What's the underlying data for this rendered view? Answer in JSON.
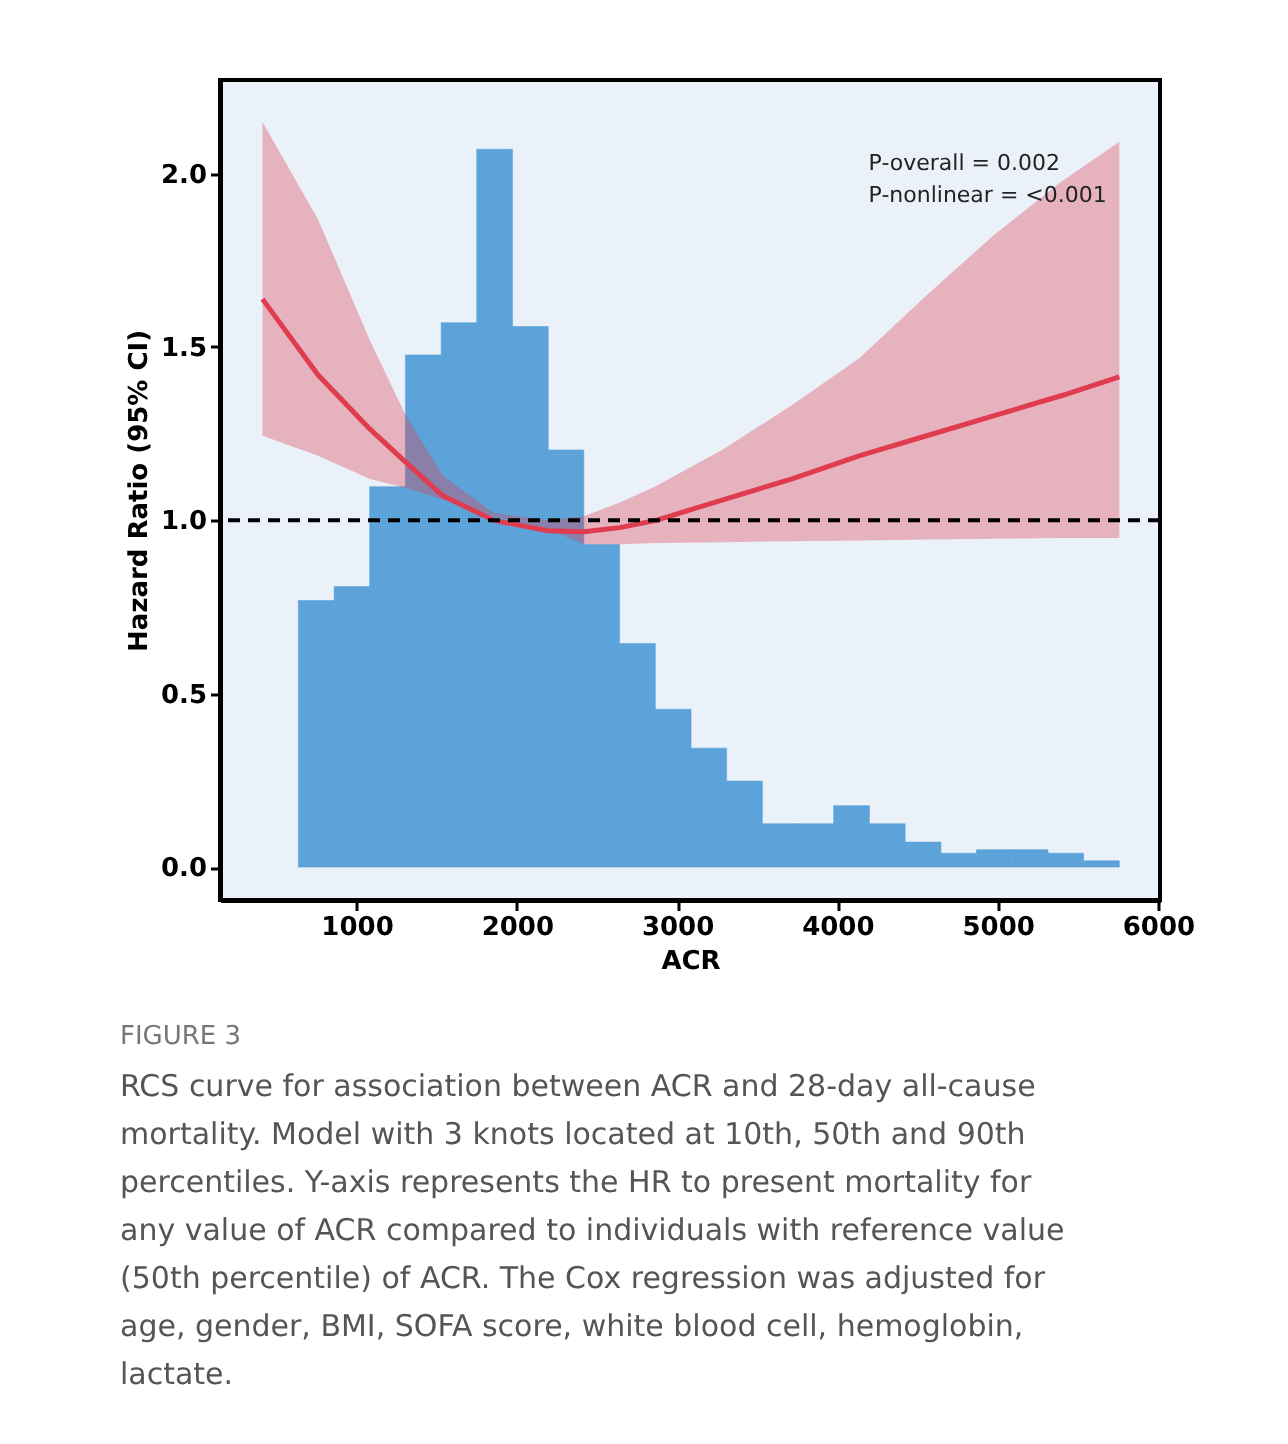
{
  "chart_data": {
    "type": "histogram",
    "xlabel": "ACR",
    "ylabel": "Hazard Ratio (95% CI)",
    "xlim": [
      148,
      6013
    ],
    "xticks": [
      1000,
      2000,
      3000,
      4000,
      5000,
      6000
    ],
    "ylim": [
      -0.095,
      2.27
    ],
    "yticks": [
      {
        "value": 0,
        "label": "0.0"
      },
      0.5,
      {
        "value": 1,
        "label": "1.0"
      },
      1.5,
      {
        "value": 2,
        "label": "2.0"
      }
    ],
    "grid": false,
    "series": [
      {
        "color": "#5ba3d9",
        "bins": [
          637,
          860,
          1082,
          1305,
          1528,
          1750,
          1973,
          2196,
          2418,
          2641,
          2864,
          3087,
          3309,
          3532,
          3755,
          3977,
          4200,
          4423,
          4646,
          4868,
          5091,
          5314,
          5536,
          5759
        ],
        "values": [
          0.769,
          0.809,
          1.097,
          1.477,
          1.57,
          2.07,
          1.559,
          1.203,
          0.93,
          0.645,
          0.455,
          0.343,
          0.248,
          0.125,
          0.125,
          0.177,
          0.125,
          0.072,
          0.04,
          0.05,
          0.05,
          0.04,
          0.018
        ]
      },
      {
        "type": "line",
        "color": "#e03c4f",
        "line_style": "solid",
        "marker": "none",
        "x": [
          413,
          760,
          1084,
          1308,
          1540,
          1857,
          2194,
          2418,
          2641,
          2869,
          3291,
          3713,
          4135,
          4557,
          4979,
          5401,
          5759
        ],
        "values": [
          1.638,
          1.419,
          1.263,
          1.167,
          1.07,
          1.0,
          0.97,
          0.967,
          0.979,
          1.0,
          1.06,
          1.119,
          1.186,
          1.244,
          1.302,
          1.36,
          1.414
        ],
        "lower": [
          1.244,
          1.186,
          1.119,
          1.093,
          1.06,
          1.012,
          0.975,
          0.931,
          0.931,
          0.935,
          0.937,
          0.94,
          0.942,
          0.945,
          0.947,
          0.949,
          0.949
        ],
        "upper": [
          2.149,
          1.868,
          1.518,
          1.302,
          1.128,
          1.021,
          1.0,
          1.012,
          1.051,
          1.099,
          1.206,
          1.331,
          1.467,
          1.649,
          1.824,
          1.978,
          2.092
        ]
      }
    ],
    "ref_lines": [
      {
        "axis": "y",
        "value": 1.0,
        "color": "#000000",
        "line_style": "dashed"
      }
    ],
    "annotations": [
      "P-overall = 0.002",
      "P-nonlinear = <0.001",
      "FIGURE 3",
      "RCS curve for association between ACR and 28-day all-cause mortality. Model with 3 knots located at 10th, 50th and 90th percentiles. Y-axis represents the HR to present mortality for any value of ACR compared to individuals with reference value (50th percentile) of ACR. The Cox regression was adjusted for age, gender, BMI, SOFA score, white blood cell, hemoglobin, lactate."
    ]
  }
}
